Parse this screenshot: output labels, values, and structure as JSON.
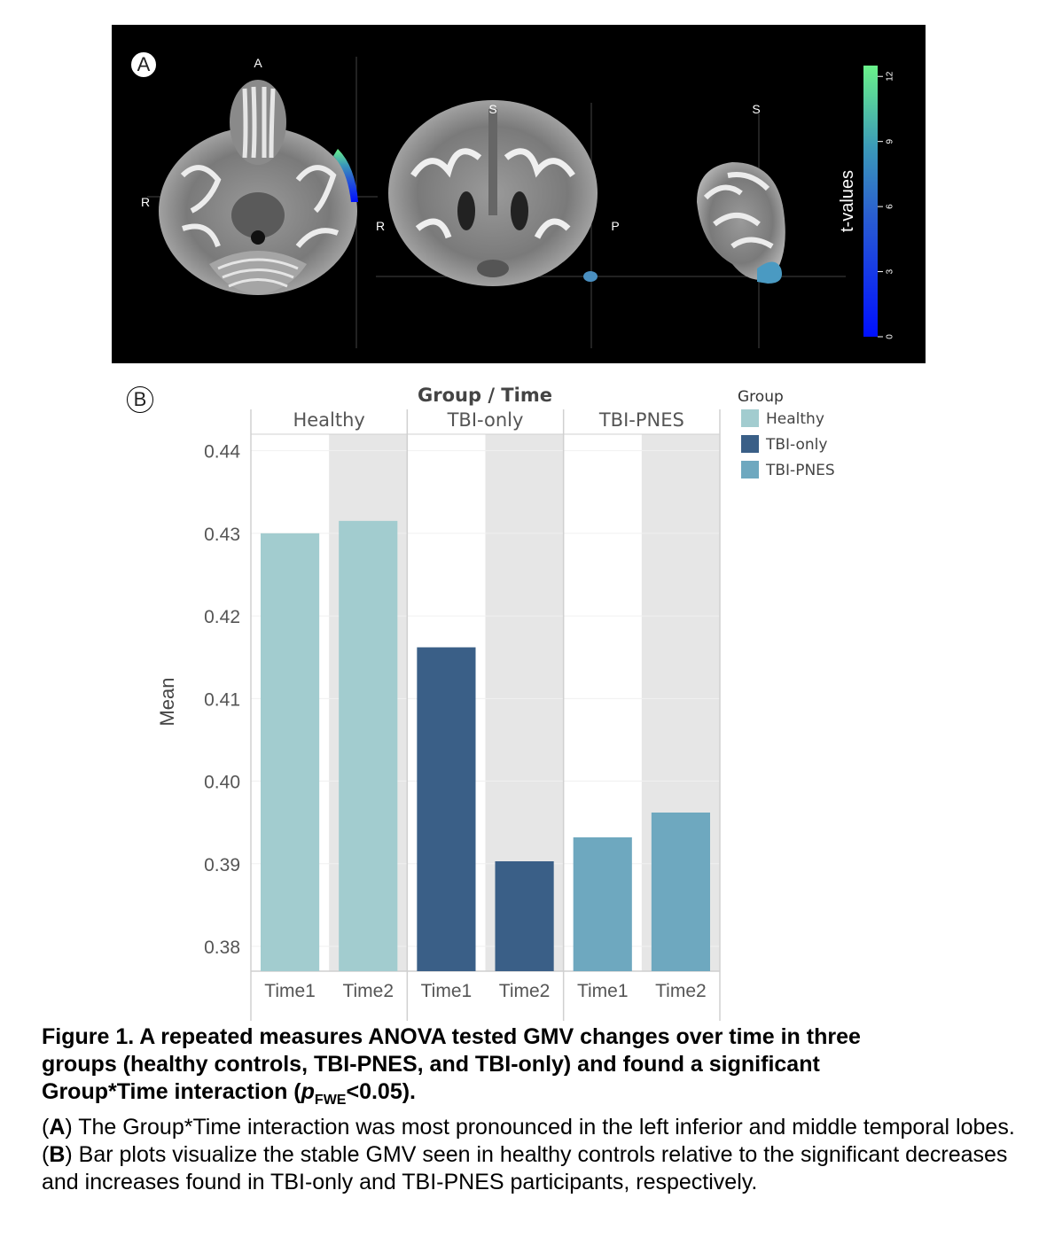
{
  "panel_a": {
    "label": "A",
    "orient": {
      "axial_top": "A",
      "axial_left": "R",
      "coronal_top": "S",
      "coronal_left": "R",
      "coronal_right": "P",
      "sagittal_top": "S"
    },
    "colorbar": {
      "title": "t-values",
      "ticks": [
        "0",
        "3",
        "6",
        "9",
        "12"
      ],
      "range": [
        0,
        12.5
      ]
    }
  },
  "panel_b": {
    "label": "B"
  },
  "chart_data": {
    "type": "bar",
    "title": "Group / Time",
    "ylabel": "Mean",
    "ylim": [
      0.377,
      0.445
    ],
    "yticks": [
      "0.44",
      "0.43",
      "0.42",
      "0.41",
      "0.40",
      "0.39",
      "0.38"
    ],
    "groups": [
      "Healthy",
      "TBI-only",
      "TBI-PNES"
    ],
    "categories": [
      "Time1",
      "Time2"
    ],
    "series": [
      {
        "name": "Healthy",
        "values": [
          0.43,
          0.4315
        ],
        "color": "#a2cccf"
      },
      {
        "name": "TBI-only",
        "values": [
          0.4162,
          0.3903
        ],
        "color": "#3a5f87"
      },
      {
        "name": "TBI-PNES",
        "values": [
          0.3932,
          0.3962
        ],
        "color": "#6ea8bf"
      }
    ],
    "legend": {
      "title": "Group",
      "placement": "right"
    },
    "grid": true
  },
  "caption": {
    "line1": "Figure 1. A repeated measures ANOVA tested GMV changes over time in three",
    "line2": "groups (healthy controls, TBI-PNES, and TBI-only) and found a significant",
    "line3_pre": "Group*Time interaction (",
    "line3_p": "p",
    "line3_sub": "FWE",
    "line3_post": "<0.05).",
    "a_letter": "A",
    "a_text": ") The Group*Time interaction was most pronounced in the left inferior and middle temporal lobes.",
    "b_letter": "B",
    "b_text": ") Bar plots visualize the stable GMV seen in healthy controls relative to the significant decreases and increases found in TBI-only and TBI-PNES participants, respectively."
  }
}
